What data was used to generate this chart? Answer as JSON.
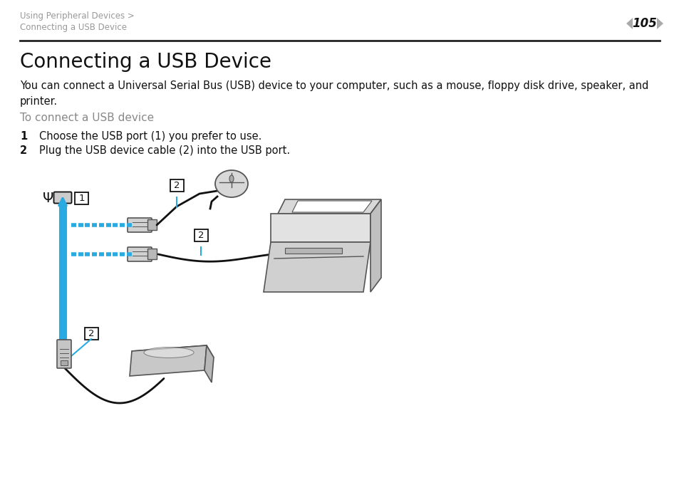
{
  "bg_color": "#ffffff",
  "header_text_line1": "Using Peripheral Devices >",
  "header_text_line2": "Connecting a USB Device",
  "header_color": "#999999",
  "page_number": "105",
  "separator_color": "#222222",
  "title": "Connecting a USB Device",
  "body_text": "You can connect a Universal Serial Bus (USB) device to your computer, such as a mouse, floppy disk drive, speaker, and\nprinter.",
  "subheading": "To connect a USB device",
  "subheading_color": "#888888",
  "step1_num": "1",
  "step1_text": "Choose the USB port (1) you prefer to use.",
  "step2_num": "2",
  "step2_text": "Plug the USB device cable (2) into the USB port.",
  "blue_color": "#29aae1",
  "dark_color": "#111111",
  "gray_dark": "#555555",
  "gray_mid": "#999999",
  "gray_light": "#cccccc",
  "gray_fill": "#e5e5e5",
  "title_fontsize": 20,
  "body_fontsize": 10.5,
  "subheading_fontsize": 11,
  "step_fontsize": 10.5,
  "header_fontsize": 8.5
}
